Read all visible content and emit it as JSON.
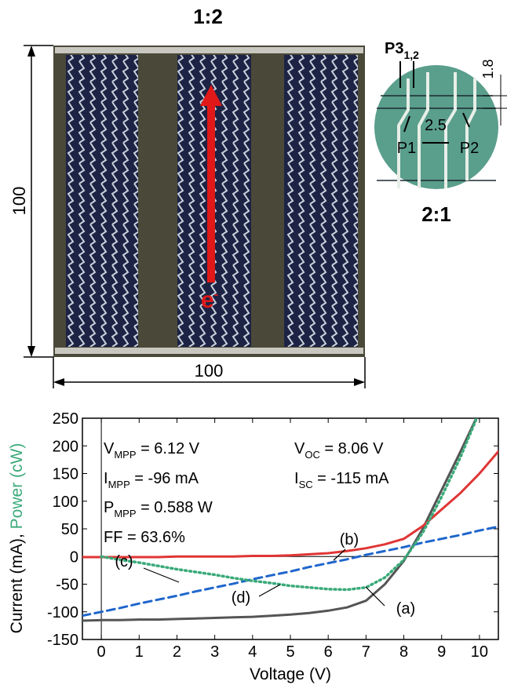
{
  "photo": {
    "scale": "1:2",
    "height_label": "100",
    "width_label": "100",
    "carrier": "e",
    "carrier_sup": "-"
  },
  "inset": {
    "scale": "2:1",
    "p3": "P3",
    "p3_sub": "1,2",
    "pitch": "1.8",
    "width": "2.5",
    "p1": "P1",
    "p2": "P2"
  },
  "chart_data": {
    "type": "line",
    "y_label": "Current (mA), ",
    "y_label_2": "Power (cW)",
    "x_label": "Voltage (V)",
    "annotations": [
      {
        "label": "V",
        "sub": "MPP",
        "text": " = 6.12 V"
      },
      {
        "label": "I",
        "sub": "MPP",
        "text": " = -96 mA"
      },
      {
        "label": "P",
        "sub": "MPP",
        "text": " = 0.588 W"
      },
      {
        "label": "FF",
        "sub": "",
        "text": " = 63.6%"
      },
      {
        "label": "V",
        "sub": "OC",
        "text": " = 8.06 V"
      },
      {
        "label": "I",
        "sub": "SC",
        "text": " = -115 mA"
      }
    ],
    "xlim": [
      -0.5,
      10.5
    ],
    "xticks": [
      0,
      1,
      2,
      3,
      4,
      5,
      6,
      7,
      8,
      9,
      10
    ],
    "ylim": [
      -150,
      250
    ],
    "yticks": [
      -150,
      -100,
      -50,
      0,
      50,
      100,
      150,
      200,
      250
    ],
    "x": [
      -0.5,
      0,
      0.5,
      1,
      1.5,
      2,
      2.5,
      3,
      3.5,
      4,
      4.5,
      5,
      5.5,
      6,
      6.5,
      7,
      7.5,
      8,
      8.5,
      9,
      9.5,
      10,
      10.5
    ],
    "series": [
      {
        "name": "(a)",
        "color": "#555555",
        "style": "solid",
        "values": [
          -116,
          -115,
          -115,
          -114,
          -114,
          -113,
          -112,
          -111,
          -110,
          -109,
          -107,
          -105,
          -102,
          -98,
          -92,
          -80,
          -50,
          -8,
          50,
          120,
          190,
          262,
          null
        ]
      },
      {
        "name": "(b)",
        "color": "#e03535",
        "style": "solid",
        "values": [
          -1,
          -1,
          -1,
          -1,
          -1,
          0,
          0,
          0,
          0,
          1,
          1,
          2,
          4,
          6,
          10,
          15,
          22,
          32,
          55,
          85,
          115,
          150,
          190
        ]
      },
      {
        "name": "(c)",
        "color": "#1f66cc",
        "style": "dashed",
        "values": [
          -107,
          -100,
          -93,
          -85,
          -78,
          -71,
          -63,
          -56,
          -49,
          -41,
          -34,
          -27,
          -19,
          -12,
          -5,
          3,
          10,
          17,
          25,
          32,
          39,
          47,
          54
        ]
      },
      {
        "name": "(d)",
        "color": "#3aaa7a",
        "style": "dotted",
        "values": [
          null,
          0,
          -6,
          -11,
          -17,
          -23,
          -28,
          -33,
          -39,
          -44,
          -48,
          -53,
          -56,
          -59,
          -60,
          -56,
          -38,
          -6,
          43,
          108,
          180,
          262,
          null
        ]
      }
    ]
  }
}
